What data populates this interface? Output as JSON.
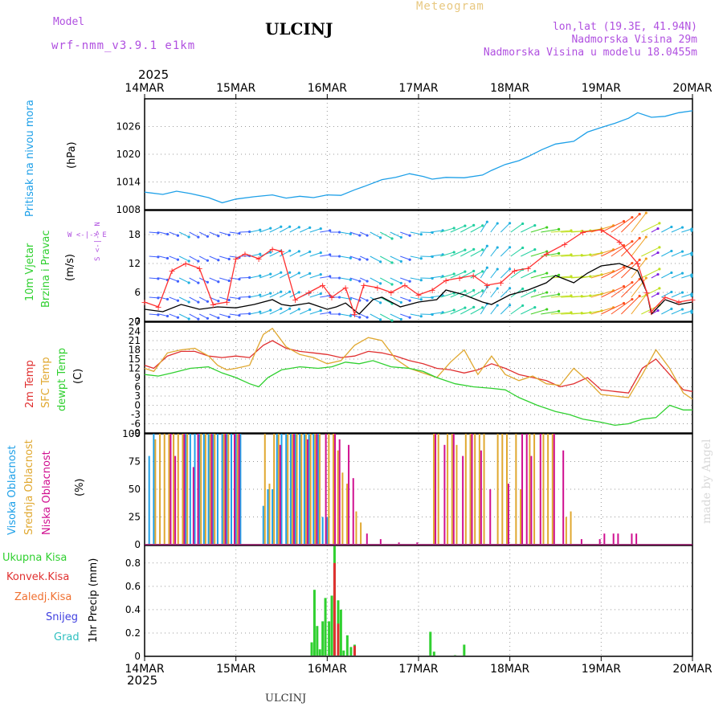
{
  "header": {
    "model_label": "Model",
    "model_name": "wrf-nmm_v3.9.1 e1km",
    "station": "ULCINJ",
    "meteogram_label": "Meteogram",
    "lonlat": "lon,lat (19.3E, 41.94N)",
    "altitude": "Nadmorska Visina 29m",
    "model_altitude": "Nadmorska Visina u modelu 18.0455m",
    "year_top": "2025",
    "year_bottom": "2025",
    "footer_station": "ULCINJ",
    "watermark": "made by Angel"
  },
  "colors": {
    "purple_text": "#b050e0",
    "gold_text": "#e8c880",
    "pressure": "#1ea0e8",
    "wind_speed": "#000000",
    "wind_gust": "#ff3030",
    "t2m": "#e03030",
    "tsfc": "#e0a830",
    "tdew": "#30d030",
    "cloud_high": "#1ea0e8",
    "cloud_mid": "#e0a830",
    "cloud_low": "#d01090",
    "precip_total": "#30d030",
    "precip_conv": "#e03030",
    "precip_frz": "#f07030",
    "precip_snow": "#4040e0",
    "precip_hail": "#30c0c0"
  },
  "panel_labels": {
    "pressure": [
      "Pritisak na nivou mora",
      "(hPa)"
    ],
    "wind": [
      "10m Vjetar",
      "Brzina i Pravac",
      "(m/s)"
    ],
    "wind_compass": "W <-|-> E",
    "wind_compass_ns": "S <-|-> N",
    "temp": [
      "2m Temp",
      "SFC Temp",
      "dewpt Temp",
      "(C)"
    ],
    "cloud": [
      "Visoka Oblacnost",
      "Srednja Oblacnost",
      "Niska Oblacnost",
      "(%)"
    ],
    "precip_ylabel": "1hr Precip (mm)",
    "precip_legend": [
      "Ukupna Kisa",
      "Konvek.Kisa",
      "Zaledj.Kisa",
      "Snijeg",
      "Grad"
    ]
  },
  "chart_data": [
    {
      "type": "line",
      "panel": "pressure",
      "x_unit": "days from 14MAR 00Z",
      "x_ticks": [
        "14MAR",
        "15MAR",
        "16MAR",
        "17MAR",
        "18MAR",
        "19MAR",
        "20MAR"
      ],
      "ylim": [
        1008,
        1032
      ],
      "y_ticks": [
        1008,
        1014,
        1020,
        1026
      ],
      "grid": true,
      "series": [
        {
          "name": "Pritisak na nivou mora",
          "color": "#1ea0e8",
          "x": [
            0,
            0.2,
            0.35,
            0.5,
            0.7,
            0.85,
            1.0,
            1.2,
            1.4,
            1.55,
            1.7,
            1.85,
            2.0,
            2.15,
            2.3,
            2.4,
            2.6,
            2.75,
            2.9,
            3.05,
            3.15,
            3.3,
            3.5,
            3.7,
            3.8,
            3.95,
            4.1,
            4.2,
            4.35,
            4.5,
            4.7,
            4.85,
            5.0,
            5.15,
            5.3,
            5.4,
            5.55,
            5.7,
            5.85,
            6.0
          ],
          "y": [
            1011.8,
            1011.3,
            1012.0,
            1011.5,
            1010.6,
            1009.5,
            1010.3,
            1010.8,
            1011.2,
            1010.5,
            1010.9,
            1010.6,
            1011.2,
            1011.1,
            1012.3,
            1013.0,
            1014.5,
            1015.0,
            1015.8,
            1015.2,
            1014.6,
            1015.0,
            1014.9,
            1015.5,
            1016.5,
            1017.8,
            1018.6,
            1019.5,
            1021.0,
            1022.2,
            1022.8,
            1024.8,
            1025.8,
            1026.7,
            1027.8,
            1029.0,
            1028.0,
            1028.2,
            1029.0,
            1029.4
          ]
        }
      ]
    },
    {
      "type": "line",
      "panel": "wind",
      "ylim": [
        0,
        23
      ],
      "y_ticks": [
        0,
        6,
        12,
        18
      ],
      "grid": true,
      "series": [
        {
          "name": "Brzina",
          "color": "#000000",
          "x": [
            0,
            0.2,
            0.4,
            0.6,
            0.8,
            1.0,
            1.2,
            1.4,
            1.5,
            1.6,
            1.8,
            2.0,
            2.1,
            2.2,
            2.35,
            2.5,
            2.6,
            2.8,
            3.0,
            3.2,
            3.3,
            3.5,
            3.7,
            3.8,
            4.0,
            4.2,
            4.4,
            4.5,
            4.7,
            4.85,
            5.0,
            5.2,
            5.4,
            5.5,
            5.55,
            5.7,
            5.85,
            6.0
          ],
          "y": [
            2.5,
            2.0,
            3.5,
            2.5,
            3.0,
            2.8,
            3.5,
            4.5,
            3.5,
            3.2,
            3.8,
            2.5,
            3.0,
            3.8,
            1.5,
            4.5,
            5.0,
            3.0,
            4.0,
            4.5,
            6.5,
            5.5,
            4.0,
            3.5,
            5.5,
            6.5,
            8.0,
            9.5,
            8.0,
            10.0,
            11.5,
            12.0,
            10.5,
            6.0,
            1.5,
            4.5,
            3.5,
            4.0
          ]
        },
        {
          "name": "Udar",
          "color": "#ff3030",
          "x": [
            0,
            0.15,
            0.3,
            0.45,
            0.6,
            0.75,
            0.9,
            1.0,
            1.1,
            1.25,
            1.4,
            1.5,
            1.65,
            1.8,
            1.95,
            2.05,
            2.2,
            2.3,
            2.4,
            2.55,
            2.7,
            2.85,
            3.0,
            3.15,
            3.3,
            3.45,
            3.6,
            3.75,
            3.9,
            4.05,
            4.2,
            4.4,
            4.6,
            4.8,
            5.0,
            5.2,
            5.4,
            5.5,
            5.55,
            5.7,
            5.85,
            6.0
          ],
          "y": [
            4.0,
            3.0,
            10.5,
            12.0,
            11.0,
            3.5,
            4.0,
            13.0,
            14.0,
            13.0,
            15.0,
            14.5,
            4.5,
            6.0,
            7.5,
            5.0,
            7.0,
            1.5,
            7.5,
            7.0,
            6.0,
            7.5,
            5.5,
            6.5,
            8.5,
            9.0,
            9.5,
            7.5,
            8.0,
            10.5,
            11.0,
            14.0,
            16.0,
            18.5,
            19.0,
            16.5,
            12.0,
            6.0,
            2.0,
            5.0,
            4.0,
            4.5
          ]
        }
      ]
    },
    {
      "type": "line",
      "panel": "temperature",
      "ylim": [
        -9,
        27
      ],
      "y_ticks": [
        -9,
        -6,
        -3,
        0,
        3,
        6,
        9,
        12,
        15,
        18,
        21,
        24,
        27
      ],
      "grid": true,
      "series": [
        {
          "name": "2m Temp",
          "color": "#e03030",
          "x": [
            0,
            0.1,
            0.25,
            0.4,
            0.55,
            0.7,
            0.85,
            1.0,
            1.15,
            1.3,
            1.4,
            1.55,
            1.7,
            1.85,
            2.0,
            2.15,
            2.3,
            2.45,
            2.6,
            2.75,
            2.9,
            3.05,
            3.2,
            3.35,
            3.5,
            3.65,
            3.8,
            3.95,
            4.1,
            4.25,
            4.4,
            4.55,
            4.7,
            4.85,
            5.0,
            5.15,
            5.3,
            5.45,
            5.6,
            5.75,
            5.9,
            6.0
          ],
          "y": [
            13,
            12,
            16,
            17.5,
            17.5,
            16,
            15.5,
            16,
            15.5,
            19.5,
            21,
            18.5,
            17.5,
            17,
            16.5,
            15.5,
            16,
            17.5,
            17,
            16,
            14.5,
            13.5,
            12,
            11.5,
            10.5,
            11.5,
            13.5,
            12,
            10,
            9,
            8,
            6,
            7,
            9,
            5,
            4.5,
            4,
            12,
            15,
            10,
            5,
            4.5
          ]
        },
        {
          "name": "SFC Temp",
          "color": "#e0a830",
          "x": [
            0,
            0.1,
            0.25,
            0.4,
            0.55,
            0.7,
            0.8,
            0.9,
            1.0,
            1.15,
            1.3,
            1.4,
            1.55,
            1.7,
            1.85,
            2.0,
            2.15,
            2.3,
            2.45,
            2.6,
            2.75,
            2.9,
            3.05,
            3.2,
            3.35,
            3.5,
            3.65,
            3.8,
            3.95,
            4.1,
            4.25,
            4.4,
            4.55,
            4.7,
            4.85,
            5.0,
            5.15,
            5.3,
            5.45,
            5.6,
            5.75,
            5.9,
            6.0
          ],
          "y": [
            12,
            11,
            17,
            18,
            18.5,
            16,
            13,
            11.5,
            12,
            13,
            23,
            25,
            19,
            16.5,
            15.5,
            13.5,
            14.5,
            19.5,
            22,
            21,
            15,
            12,
            10.5,
            9,
            14,
            18,
            10,
            16,
            10,
            8,
            9.5,
            7,
            6.5,
            12,
            8,
            3.5,
            3,
            2.5,
            10,
            18,
            12,
            4,
            2
          ]
        },
        {
          "name": "dewpt Temp",
          "color": "#30d030",
          "x": [
            0,
            0.15,
            0.3,
            0.5,
            0.7,
            0.85,
            1.0,
            1.15,
            1.25,
            1.35,
            1.5,
            1.7,
            1.9,
            2.05,
            2.2,
            2.35,
            2.5,
            2.7,
            2.9,
            3.05,
            3.2,
            3.4,
            3.6,
            3.8,
            3.95,
            4.1,
            4.3,
            4.5,
            4.65,
            4.8,
            5.0,
            5.15,
            5.3,
            5.45,
            5.6,
            5.75,
            5.9,
            6.0
          ],
          "y": [
            10,
            9.5,
            10.5,
            12,
            12.5,
            10.5,
            9,
            7,
            6,
            9,
            11.5,
            12.5,
            12,
            12.5,
            14,
            13.5,
            14.5,
            12.5,
            12,
            11,
            9,
            7,
            6,
            5.5,
            5,
            2.5,
            0,
            -2,
            -3,
            -4.5,
            -5.5,
            -6.5,
            -6,
            -4.5,
            -4,
            0,
            -1.5,
            -1.5
          ]
        }
      ]
    },
    {
      "type": "bar",
      "panel": "cloud",
      "ylim": [
        0,
        100
      ],
      "y_ticks": [
        0,
        25,
        50,
        75,
        100
      ],
      "grid": true,
      "series": [
        {
          "name": "Visoka Oblacnost",
          "color": "#1ea0e8",
          "x": [
            0.05,
            0.1,
            0.45,
            0.5,
            0.55,
            0.6,
            0.65,
            0.7,
            0.75,
            0.8,
            0.85,
            0.9,
            0.95,
            1.0,
            1.05,
            1.3,
            1.35,
            1.4,
            1.45,
            1.5,
            1.55,
            1.6,
            1.65,
            1.7,
            1.75,
            1.8,
            1.85,
            1.9,
            1.95,
            2.0
          ],
          "y": [
            80,
            100,
            100,
            100,
            100,
            100,
            100,
            100,
            100,
            100,
            100,
            100,
            100,
            100,
            100,
            35,
            50,
            50,
            100,
            100,
            100,
            100,
            100,
            100,
            100,
            100,
            100,
            100,
            25,
            25
          ]
        },
        {
          "name": "Srednja Oblacnost",
          "color": "#e0a830",
          "x": [
            0.1,
            0.15,
            0.2,
            0.25,
            0.3,
            0.35,
            0.4,
            0.45,
            0.6,
            0.65,
            0.7,
            0.75,
            0.85,
            0.9,
            1.0,
            1.3,
            1.35,
            1.4,
            1.45,
            1.55,
            1.6,
            1.65,
            1.7,
            1.75,
            1.8,
            1.85,
            1.9,
            2.0,
            2.05,
            2.1,
            2.15,
            2.2,
            2.3,
            2.35,
            3.15,
            3.2,
            3.3,
            3.35,
            3.4,
            3.5,
            3.55,
            3.6,
            3.65,
            3.7,
            3.85,
            3.9,
            3.95,
            4.05,
            4.1,
            4.2,
            4.25,
            4.35,
            4.4,
            4.45,
            4.6,
            4.65
          ],
          "y": [
            95,
            100,
            100,
            100,
            100,
            100,
            100,
            100,
            100,
            100,
            100,
            100,
            100,
            100,
            100,
            100,
            55,
            100,
            100,
            100,
            100,
            100,
            100,
            100,
            100,
            100,
            100,
            100,
            100,
            85,
            65,
            55,
            30,
            20,
            100,
            100,
            100,
            100,
            90,
            100,
            100,
            100,
            100,
            100,
            100,
            100,
            100,
            100,
            50,
            100,
            100,
            100,
            100,
            100,
            25,
            30
          ]
        },
        {
          "name": "Niska Oblacnost",
          "color": "#d01090",
          "x": [
            0.25,
            0.3,
            0.4,
            0.5,
            0.55,
            0.7,
            0.85,
            0.95,
            1.0,
            1.45,
            1.6,
            1.75,
            1.85,
            1.95,
            2.05,
            2.1,
            2.2,
            2.25,
            2.4,
            2.55,
            2.75,
            2.95,
            3.15,
            3.25,
            3.35,
            3.45,
            3.55,
            3.65,
            3.75,
            3.95,
            4.1,
            4.15,
            4.2,
            4.3,
            4.45,
            4.55,
            4.75,
            4.95,
            5.0,
            5.1,
            5.15,
            5.3,
            5.35
          ],
          "y": [
            100,
            80,
            100,
            70,
            100,
            100,
            100,
            100,
            100,
            90,
            100,
            95,
            100,
            100,
            100,
            95,
            90,
            60,
            10,
            5,
            2,
            2,
            100,
            90,
            100,
            80,
            100,
            85,
            50,
            55,
            100,
            100,
            80,
            100,
            100,
            85,
            5,
            5,
            10,
            10,
            10,
            10,
            10
          ]
        }
      ]
    },
    {
      "type": "bar",
      "panel": "precip",
      "ylim": [
        0,
        0.95
      ],
      "y_ticks": [
        0,
        0.2,
        0.4,
        0.6,
        0.8
      ],
      "grid": true,
      "series": [
        {
          "name": "Ukupna Kisa",
          "color": "#30d030",
          "x": [
            1.83,
            1.86,
            1.89,
            1.92,
            1.95,
            1.98,
            2.02,
            2.05,
            2.08,
            2.12,
            2.15,
            2.18,
            2.22,
            2.26,
            2.3,
            3.13,
            3.17,
            3.4,
            3.5
          ],
          "y": [
            0.12,
            0.57,
            0.26,
            0.06,
            0.3,
            0.5,
            0.3,
            0.52,
            0.98,
            0.48,
            0.4,
            0.05,
            0.18,
            0.08,
            0.1,
            0.21,
            0.04,
            0.01,
            0.1
          ]
        },
        {
          "name": "Konvek.Kisa",
          "color": "#e03030",
          "x": [
            2.08,
            2.12,
            2.3
          ],
          "y": [
            0.8,
            0.28,
            0.09
          ]
        },
        {
          "name": "Zaledj.Kisa",
          "color": "#f07030",
          "x": [],
          "y": []
        },
        {
          "name": "Snijeg",
          "color": "#4040e0",
          "x": [],
          "y": []
        },
        {
          "name": "Grad",
          "color": "#30c0c0",
          "x": [],
          "y": []
        }
      ]
    }
  ]
}
